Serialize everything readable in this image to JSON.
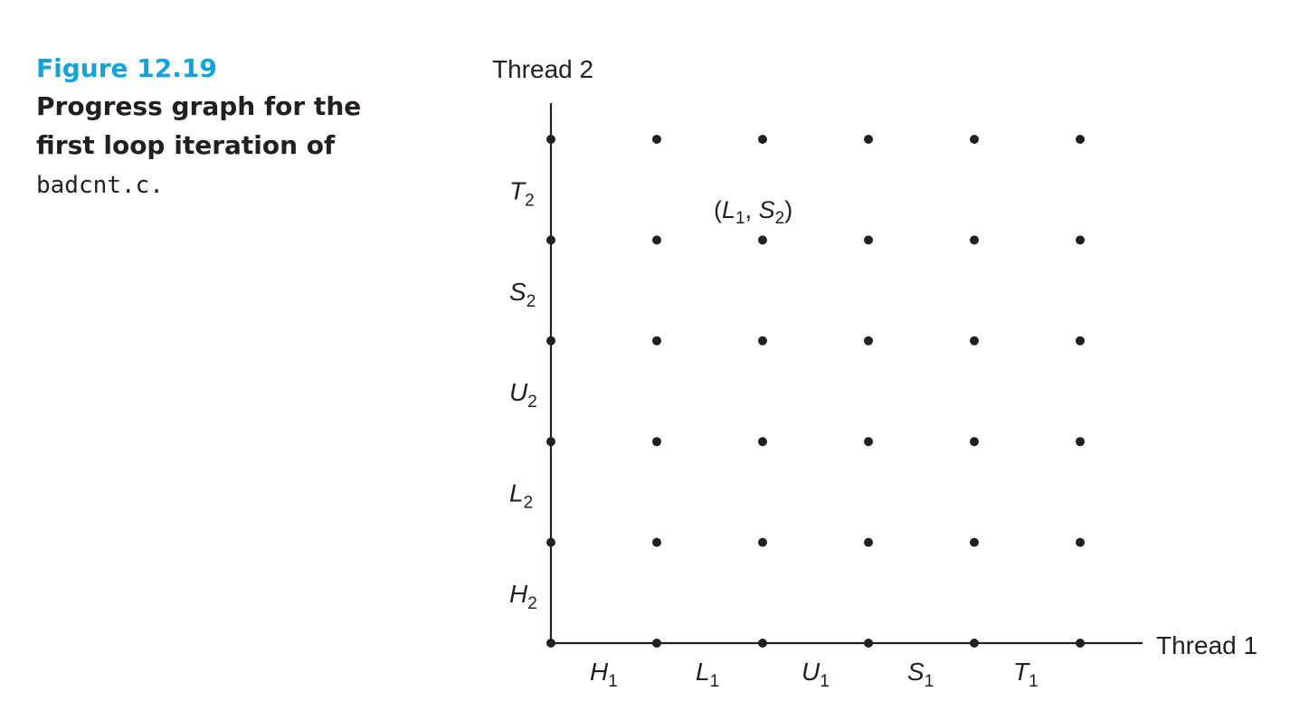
{
  "caption": {
    "figure_number": "Figure 12.19",
    "line1": "Progress graph for the",
    "line2": "first loop iteration of",
    "code": "badcnt.c",
    "period": "."
  },
  "diagram": {
    "y_axis_label": "Thread 2",
    "x_axis_label": "Thread 1",
    "x_segments": [
      {
        "base": "H",
        "sub": "1"
      },
      {
        "base": "L",
        "sub": "1"
      },
      {
        "base": "U",
        "sub": "1"
      },
      {
        "base": "S",
        "sub": "1"
      },
      {
        "base": "T",
        "sub": "1"
      }
    ],
    "y_segments": [
      {
        "base": "H",
        "sub": "2"
      },
      {
        "base": "L",
        "sub": "2"
      },
      {
        "base": "U",
        "sub": "2"
      },
      {
        "base": "S",
        "sub": "2"
      },
      {
        "base": "T",
        "sub": "2"
      }
    ],
    "grid_points": 6,
    "annotation": {
      "open": "(",
      "a_base": "L",
      "a_sub": "1",
      "sep": ", ",
      "b_base": "S",
      "b_sub": "2",
      "close": ")"
    },
    "color": "#231f20"
  }
}
